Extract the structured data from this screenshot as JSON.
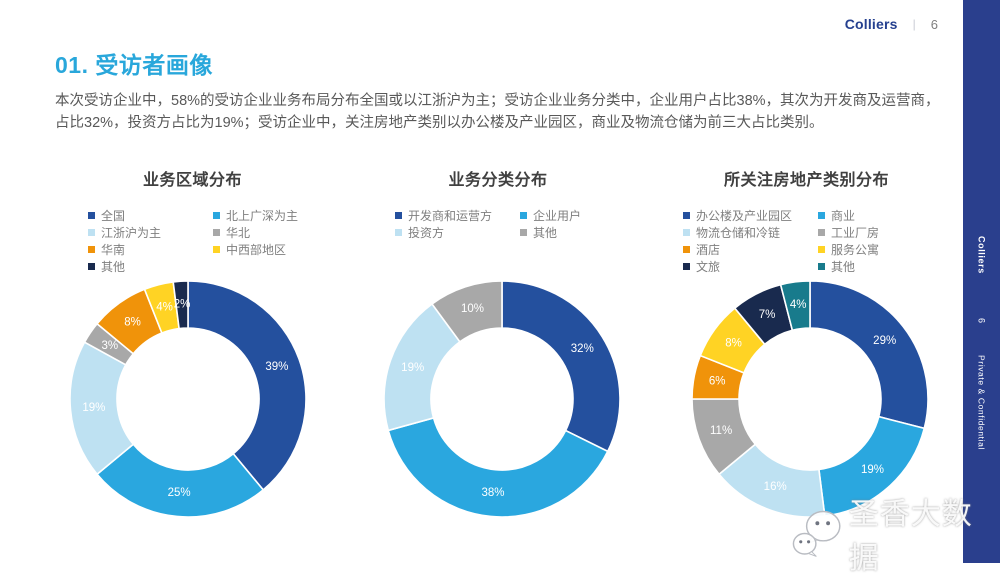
{
  "header": {
    "logo": "Colliers",
    "separator": "|",
    "page_number": "6"
  },
  "title": "01. 受访者画像",
  "intro": "本次受访企业中，58%的受访企业业务布局分布全国或以江浙沪为主；受访企业业务分类中，企业用户占比38%，其次为开发商及运营商，占比32%，投资方占比为19%；受访企业中，关注房地产类别以办公楼及产业园区，商业及物流仓储为前三大占比类别。",
  "sidebar": {
    "brand": "Colliers",
    "page_number": "6",
    "confidential": "Private & Confidential",
    "bg_color": "#2a3f8d"
  },
  "watermark": {
    "text": "圣香大数据",
    "icon": "chat-bubbles-icon"
  },
  "colors": {
    "accent_title": "#29a7db",
    "brand_blue": "#25408F",
    "body_text": "#595959",
    "legend_text": "#7f7f7f",
    "chart_title": "#404040"
  },
  "chart_data": [
    {
      "type": "pie",
      "subtype": "donut",
      "title": "业务区域分布",
      "legend_position": "top",
      "start_angle": "top",
      "direction": "clockwise",
      "categories": [
        "全国",
        "北上广深为主",
        "江浙沪为主",
        "华北",
        "华南",
        "中西部地区",
        "其他"
      ],
      "values": [
        39,
        25,
        19,
        3,
        8,
        4,
        2
      ],
      "labels": [
        "39%",
        "25%",
        "19%",
        "3%",
        "8%",
        "4%",
        "2%"
      ],
      "colors": [
        "#24509E",
        "#2AA7DF",
        "#BEE1F2",
        "#A8A8A8",
        "#F0930A",
        "#FFD324",
        "#192A4E"
      ]
    },
    {
      "type": "pie",
      "subtype": "donut",
      "title": "业务分类分布",
      "legend_position": "top",
      "start_angle": "top",
      "direction": "clockwise",
      "categories": [
        "开发商和运营方",
        "企业用户",
        "投资方",
        "其他"
      ],
      "values": [
        32,
        38,
        19,
        10
      ],
      "labels": [
        "32%",
        "38%",
        "19%",
        "10%"
      ],
      "colors": [
        "#24509E",
        "#2AA7DF",
        "#BEE1F2",
        "#A8A8A8"
      ]
    },
    {
      "type": "pie",
      "subtype": "donut",
      "title": "所关注房地产类别分布",
      "legend_position": "top",
      "start_angle": "top",
      "direction": "clockwise",
      "categories": [
        "办公楼及产业园区",
        "商业",
        "物流仓储和冷链",
        "工业厂房",
        "酒店",
        "服务公寓",
        "文旅",
        "其他"
      ],
      "values": [
        29,
        19,
        16,
        11,
        6,
        8,
        7,
        4
      ],
      "labels": [
        "29%",
        "19%",
        "16%",
        "11%",
        "6%",
        "8%",
        "7%",
        "4%"
      ],
      "colors": [
        "#24509E",
        "#2AA7DF",
        "#BEE1F2",
        "#A8A8A8",
        "#F0930A",
        "#FFD324",
        "#192A4E",
        "#187B8C"
      ]
    }
  ]
}
